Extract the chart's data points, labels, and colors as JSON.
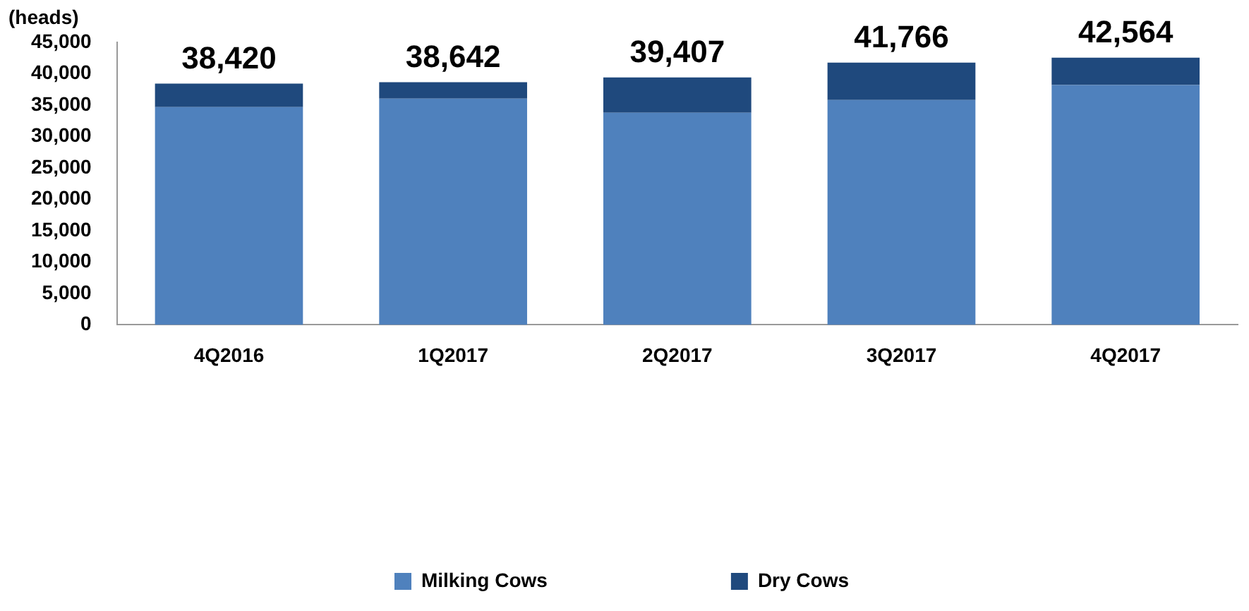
{
  "chart_data": {
    "type": "bar",
    "stacked": true,
    "ylabel": "(heads)",
    "categories": [
      "4Q2016",
      "1Q2017",
      "2Q2017",
      "3Q2017",
      "4Q2017"
    ],
    "series": [
      {
        "name": "Milking Cows",
        "color": "#4f81bd",
        "values": [
          34700,
          36050,
          33800,
          35800,
          38200
        ]
      },
      {
        "name": "Dry Cows",
        "color": "#1f497d",
        "values": [
          3720,
          2592,
          5607,
          5966,
          4364
        ]
      }
    ],
    "totals": [
      "38,420",
      "38,642",
      "39,407",
      "41,766",
      "42,564"
    ],
    "ylim": [
      0,
      45000
    ],
    "yticks": [
      {
        "value": 0,
        "label": "0"
      },
      {
        "value": 5000,
        "label": "5,000"
      },
      {
        "value": 10000,
        "label": "10,000"
      },
      {
        "value": 15000,
        "label": "15,000"
      },
      {
        "value": 20000,
        "label": "20,000"
      },
      {
        "value": 25000,
        "label": "25,000"
      },
      {
        "value": 30000,
        "label": "30,000"
      },
      {
        "value": 35000,
        "label": "35,000"
      },
      {
        "value": 40000,
        "label": "40,000"
      },
      {
        "value": 45000,
        "label": "45,000"
      }
    ],
    "grid": false,
    "legend": "bottom"
  }
}
